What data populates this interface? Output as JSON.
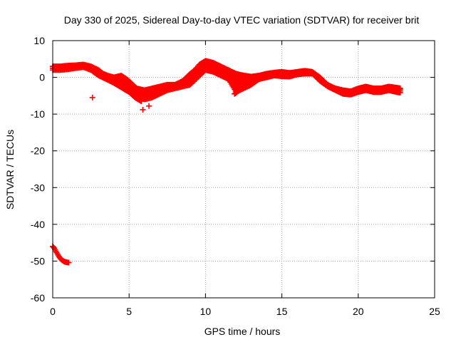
{
  "chart_data": {
    "type": "scatter",
    "title": "Day 330 of 2025, Sidereal Day-to-day VTEC variation (SDTVAR) for receiver brit",
    "xlabel": "GPS time / hours",
    "ylabel": "SDTVAR / TECUs",
    "xlim": [
      0,
      25
    ],
    "ylim": [
      -60,
      10
    ],
    "xticks": [
      0,
      5,
      10,
      15,
      20,
      25
    ],
    "yticks": [
      10,
      0,
      -10,
      -20,
      -30,
      -40,
      -50,
      -60
    ],
    "grid": true,
    "legend": "none",
    "marker": "+",
    "color": "#ff0000",
    "series": [
      {
        "name": "band-upper",
        "x": [
          0,
          0.5,
          1,
          1.5,
          2,
          2.5,
          3,
          3.3,
          3.6,
          4,
          4.5,
          5,
          5.5,
          6,
          6.5,
          7,
          7.5,
          8,
          8.5,
          9,
          9.3,
          9.6,
          10,
          10.5,
          11,
          11.5,
          12,
          12.5,
          13,
          13.5,
          14,
          14.5,
          15,
          15.5,
          16,
          16.5,
          17,
          17.5,
          18,
          18.5,
          19,
          19.5,
          20,
          20.5,
          21,
          21.5,
          22,
          22.5,
          22.8
        ],
        "y": [
          3,
          3,
          3.2,
          3.3,
          3.5,
          3,
          2,
          1,
          0.5,
          0,
          0.5,
          -1,
          -3,
          -3.5,
          -3,
          -2.5,
          -2,
          -2,
          -1,
          1,
          2,
          3.5,
          4.5,
          4,
          3,
          2,
          1,
          0.5,
          0.2,
          0.5,
          1,
          1.3,
          1.5,
          1.2,
          1.5,
          1.8,
          1.5,
          0,
          -2,
          -3,
          -3.5,
          -3.8,
          -3,
          -2.5,
          -3,
          -3,
          -2.5,
          -2.8,
          -3
        ]
      },
      {
        "name": "band-lower",
        "x": [
          0,
          0.5,
          1,
          1.5,
          2,
          2.5,
          3,
          3.5,
          4,
          4.5,
          5,
          5.5,
          6,
          6.5,
          7,
          7.5,
          8,
          8.5,
          9,
          9.5,
          10,
          10.5,
          11,
          11.5,
          12,
          12.5,
          13,
          13.5,
          14,
          14.5,
          15,
          15.5,
          16,
          16.5,
          17,
          17.5,
          18,
          18.5,
          19,
          19.5,
          20,
          20.5,
          21,
          21.5,
          22,
          22.5,
          22.8
        ],
        "y": [
          2,
          2,
          2.2,
          2.5,
          2.8,
          2,
          0.5,
          -0.5,
          -1.5,
          -2.5,
          -3.5,
          -5,
          -6,
          -5.5,
          -4.5,
          -3.5,
          -3,
          -2.5,
          -2,
          0,
          2,
          1.5,
          0.5,
          -0.5,
          -4,
          -3,
          -2,
          -0.5,
          0,
          0.5,
          0.3,
          0.2,
          0.8,
          1,
          1,
          -1,
          -2.5,
          -3.5,
          -4.5,
          -4.7,
          -4,
          -3.5,
          -4,
          -4,
          -3.5,
          -4,
          -4.2
        ]
      },
      {
        "name": "branch-a",
        "x": [
          3.4,
          3.8,
          4.2,
          4.6,
          5,
          5.4,
          5.8
        ],
        "y": [
          0.5,
          -1,
          -2,
          -3,
          -4,
          -5.5,
          -6.5
        ]
      },
      {
        "name": "branch-b",
        "x": [
          11.9,
          12.3,
          12.7,
          13.1,
          13.5,
          13.9
        ],
        "y": [
          -4.5,
          -3.2,
          -1.8,
          -0.8,
          0,
          0.6
        ]
      },
      {
        "name": "outliers",
        "x": [
          2.6,
          5.9,
          6.3
        ],
        "y": [
          -5.5,
          -8.8,
          -7.8
        ]
      },
      {
        "name": "early-decline",
        "x": [
          0,
          0.1,
          0.2,
          0.3,
          0.4,
          0.5,
          0.6,
          0.7,
          0.8,
          0.9,
          1.0,
          1.1
        ],
        "y": [
          -46,
          -46.5,
          -47.3,
          -48,
          -48.7,
          -49.3,
          -49.7,
          -50,
          -50.2,
          -50.3,
          -50.4,
          -50.4
        ]
      }
    ]
  }
}
